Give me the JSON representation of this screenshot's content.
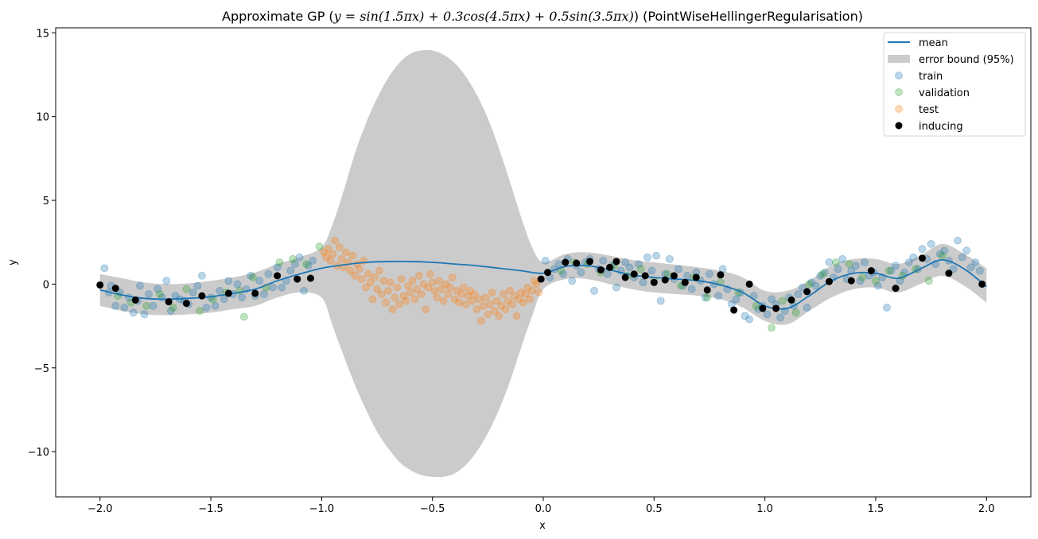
{
  "chart_data": {
    "type": "scatter",
    "title": "Approximate GP ($y=\\sin(1.5\\pi x)+0.3\\cos(4.5\\pi x)+0.5\\sin(3.5\\pi x)$) (PointWiseHellingerRegularisation)",
    "title_parts": {
      "prefix": "Approximate GP (",
      "formula": "y = sin(1.5πx) + 0.3cos(4.5πx) + 0.5sin(3.5πx)",
      "suffix": ") (PointWiseHellingerRegularisation)"
    },
    "xlabel": "x",
    "ylabel": "y",
    "xlim": [
      -2.2,
      2.2
    ],
    "ylim": [
      -12.7,
      15.3
    ],
    "xticks": [
      -2.0,
      -1.5,
      -1.0,
      -0.5,
      0.0,
      0.5,
      1.0,
      1.5,
      2.0
    ],
    "xtick_labels": [
      "−2.0",
      "−1.5",
      "−1.0",
      "−0.5",
      "0.0",
      "0.5",
      "1.0",
      "1.5",
      "2.0"
    ],
    "yticks": [
      -10,
      -5,
      0,
      5,
      10,
      15
    ],
    "ytick_labels": [
      "−10",
      "−5",
      "0",
      "5",
      "10",
      "15"
    ],
    "grid": false,
    "legend_position": "top-right",
    "legend": [
      "mean",
      "error bound (95%)",
      "train",
      "validation",
      "test",
      "inducing"
    ],
    "colors": {
      "mean": "#1f77b4",
      "error_bound": "#cbcbcb",
      "train": "#1f77b4",
      "validation": "#2ca02c",
      "test": "#ff7f0e",
      "inducing": "#000000"
    },
    "series": [
      {
        "name": "mean",
        "kind": "line",
        "x": [
          -2.0,
          -1.9,
          -1.8,
          -1.7,
          -1.6,
          -1.5,
          -1.4,
          -1.3,
          -1.2,
          -1.1,
          -1.0,
          -0.9,
          -0.8,
          -0.7,
          -0.6,
          -0.5,
          -0.4,
          -0.3,
          -0.2,
          -0.1,
          0.0,
          0.1,
          0.2,
          0.3,
          0.4,
          0.5,
          0.6,
          0.7,
          0.8,
          0.9,
          1.0,
          1.1,
          1.2,
          1.3,
          1.4,
          1.5,
          1.6,
          1.7,
          1.8,
          1.9,
          2.0
        ],
        "y": [
          -0.35,
          -0.65,
          -0.85,
          -0.9,
          -0.85,
          -0.75,
          -0.55,
          -0.3,
          0.2,
          0.6,
          0.95,
          1.15,
          1.3,
          1.35,
          1.35,
          1.3,
          1.2,
          1.1,
          0.95,
          0.8,
          0.65,
          1.05,
          1.1,
          0.85,
          0.55,
          0.4,
          0.3,
          0.2,
          -0.05,
          -0.5,
          -1.3,
          -1.45,
          -0.7,
          0.2,
          0.65,
          0.65,
          0.35,
          0.9,
          1.45,
          0.9,
          -0.15
        ]
      },
      {
        "name": "error bound (95%)",
        "kind": "band",
        "x": [
          -2.0,
          -1.9,
          -1.8,
          -1.7,
          -1.6,
          -1.5,
          -1.4,
          -1.3,
          -1.2,
          -1.1,
          -1.0,
          -0.95,
          -0.9,
          -0.85,
          -0.8,
          -0.75,
          -0.7,
          -0.65,
          -0.6,
          -0.55,
          -0.5,
          -0.45,
          -0.4,
          -0.35,
          -0.3,
          -0.25,
          -0.2,
          -0.15,
          -0.1,
          -0.05,
          0.0,
          0.1,
          0.2,
          0.3,
          0.4,
          0.5,
          0.6,
          0.7,
          0.8,
          0.9,
          1.0,
          1.1,
          1.2,
          1.3,
          1.4,
          1.5,
          1.6,
          1.7,
          1.8,
          1.9,
          2.0
        ],
        "upper": [
          0.6,
          0.35,
          0.1,
          0.0,
          0.05,
          0.2,
          0.4,
          0.7,
          1.2,
          1.6,
          2.2,
          3.6,
          5.6,
          7.8,
          9.6,
          11.1,
          12.3,
          13.2,
          13.75,
          13.95,
          13.95,
          13.7,
          13.2,
          12.4,
          11.3,
          9.9,
          8.1,
          6.1,
          4.0,
          2.2,
          1.3,
          1.8,
          1.9,
          1.7,
          1.45,
          1.3,
          1.15,
          1.0,
          0.8,
          0.4,
          -0.4,
          -0.4,
          0.2,
          1.1,
          1.5,
          1.5,
          1.2,
          1.7,
          2.4,
          1.8,
          0.95
        ],
        "lower": [
          -1.3,
          -1.6,
          -1.8,
          -1.85,
          -1.8,
          -1.7,
          -1.5,
          -1.3,
          -0.8,
          -0.5,
          -0.8,
          -2.5,
          -4.3,
          -6.0,
          -7.5,
          -8.8,
          -9.8,
          -10.6,
          -11.1,
          -11.4,
          -11.5,
          -11.5,
          -11.3,
          -10.8,
          -10.0,
          -8.9,
          -7.5,
          -5.8,
          -3.8,
          -1.9,
          -0.3,
          0.3,
          0.3,
          0.0,
          -0.3,
          -0.5,
          -0.6,
          -0.7,
          -0.9,
          -1.4,
          -2.2,
          -2.4,
          -1.6,
          -0.8,
          -0.3,
          -0.2,
          -0.5,
          0.0,
          0.5,
          -0.1,
          -1.1
        ]
      },
      {
        "name": "train",
        "kind": "scatter",
        "x": [
          -1.98,
          -1.96,
          -1.95,
          -1.93,
          -1.91,
          -1.89,
          -1.87,
          -1.85,
          -1.83,
          -1.82,
          -1.8,
          -1.78,
          -1.76,
          -1.74,
          -1.72,
          -1.7,
          -1.68,
          -1.66,
          -1.64,
          -1.62,
          -1.6,
          -1.58,
          -1.56,
          -1.54,
          -1.52,
          -1.5,
          -1.48,
          -1.46,
          -1.44,
          -1.42,
          -1.4,
          -1.38,
          -1.36,
          -1.34,
          -1.32,
          -1.3,
          -1.28,
          -1.26,
          -1.24,
          -1.22,
          -1.2,
          -1.18,
          -1.16,
          -1.14,
          -1.12,
          -1.1,
          -1.08,
          -1.06,
          -1.04,
          0.01,
          0.03,
          0.05,
          0.07,
          0.09,
          0.11,
          0.13,
          0.15,
          0.17,
          0.19,
          0.21,
          0.23,
          0.25,
          0.27,
          0.29,
          0.31,
          0.33,
          0.35,
          0.37,
          0.39,
          0.41,
          0.43,
          0.45,
          0.47,
          0.49,
          0.51,
          0.53,
          0.55,
          0.57,
          0.59,
          0.61,
          0.63,
          0.65,
          0.67,
          0.69,
          0.71,
          0.73,
          0.75,
          0.77,
          0.79,
          0.81,
          0.83,
          0.85,
          0.87,
          0.89,
          0.91,
          0.93,
          0.95,
          0.97,
          0.99,
          1.01,
          1.03,
          1.05,
          1.07,
          1.09,
          1.11,
          1.13,
          1.15,
          1.17,
          1.19,
          1.21,
          1.23,
          1.25,
          1.27,
          1.29,
          1.31,
          1.33,
          1.35,
          1.37,
          1.39,
          1.41,
          1.43,
          1.45,
          1.47,
          1.49,
          1.51,
          1.53,
          1.55,
          1.57,
          1.59,
          1.61,
          1.63,
          1.65,
          1.67,
          1.69,
          1.71,
          1.73,
          1.75,
          1.77,
          1.79,
          1.81,
          1.83,
          1.85,
          1.87,
          1.89,
          1.91,
          1.93,
          1.95,
          1.97
        ],
        "y": [
          0.95,
          -0.5,
          -0.1,
          -1.3,
          -0.5,
          -1.4,
          -0.8,
          -1.7,
          -1.0,
          -0.1,
          -1.8,
          -0.6,
          -1.3,
          -0.3,
          -0.8,
          0.2,
          -1.6,
          -0.7,
          -0.9,
          -1.0,
          -1.2,
          -0.5,
          -0.1,
          0.5,
          -1.4,
          -0.8,
          -1.3,
          -0.4,
          -0.9,
          0.2,
          -0.6,
          0.0,
          -0.8,
          -0.3,
          0.5,
          -0.7,
          0.2,
          -0.6,
          0.6,
          -0.2,
          1.0,
          -0.2,
          0.2,
          0.8,
          1.2,
          1.6,
          -0.4,
          1.1,
          1.4,
          1.4,
          0.4,
          0.9,
          1.2,
          0.6,
          1.5,
          0.2,
          1.1,
          0.7,
          1.3,
          1.5,
          -0.4,
          0.9,
          1.4,
          0.6,
          1.1,
          -0.2,
          0.8,
          1.3,
          1.0,
          0.4,
          1.2,
          0.1,
          1.6,
          0.8,
          1.7,
          -1.0,
          0.6,
          1.5,
          0.3,
          0.9,
          -0.1,
          0.5,
          -0.3,
          0.7,
          0.2,
          -0.8,
          0.6,
          0.0,
          -0.7,
          0.9,
          -0.3,
          -1.2,
          -0.9,
          -0.5,
          -1.9,
          -2.1,
          -0.7,
          -1.5,
          -1.3,
          -1.8,
          -0.9,
          -1.2,
          -2.0,
          -1.6,
          -0.8,
          -1.3,
          -0.6,
          -0.2,
          -1.4,
          0.1,
          -0.1,
          0.5,
          0.7,
          1.3,
          0.4,
          0.9,
          1.5,
          0.3,
          0.8,
          1.1,
          0.2,
          1.3,
          0.5,
          0.7,
          -0.1,
          0.4,
          -1.4,
          0.8,
          1.1,
          0.2,
          0.7,
          1.3,
          1.6,
          0.9,
          2.1,
          1.5,
          2.4,
          1.2,
          1.8,
          2.0,
          1.4,
          0.9,
          2.6,
          1.6,
          2.0,
          1.0,
          1.3,
          0.8
        ]
      },
      {
        "name": "validation",
        "kind": "scatter",
        "x": [
          -1.92,
          -1.86,
          -1.79,
          -1.73,
          -1.67,
          -1.61,
          -1.55,
          -1.49,
          -1.43,
          -1.37,
          -1.35,
          -1.31,
          -1.25,
          -1.19,
          -1.13,
          -1.07,
          -1.01,
          0.08,
          0.14,
          0.2,
          0.26,
          0.32,
          0.38,
          0.44,
          0.5,
          0.56,
          0.62,
          0.68,
          0.74,
          0.8,
          0.88,
          0.96,
          1.03,
          1.08,
          1.14,
          1.2,
          1.26,
          1.32,
          1.38,
          1.44,
          1.5,
          1.56,
          1.62,
          1.68,
          1.74,
          1.8
        ],
        "y": [
          -0.7,
          -1.1,
          -1.3,
          -0.6,
          -1.4,
          -0.3,
          -1.6,
          -0.9,
          -0.5,
          -0.4,
          -1.95,
          0.4,
          -0.2,
          1.3,
          1.5,
          1.2,
          2.25,
          0.8,
          1.3,
          1.2,
          0.7,
          1.1,
          0.5,
          0.9,
          0.2,
          0.6,
          -0.1,
          0.4,
          -0.8,
          0.1,
          -0.5,
          -1.3,
          -2.6,
          -1.0,
          -1.7,
          0.0,
          0.6,
          1.3,
          1.2,
          0.4,
          0.2,
          0.8,
          0.5,
          0.9,
          0.2,
          1.7
        ]
      },
      {
        "name": "test",
        "kind": "scatter",
        "x": [
          -0.99,
          -0.98,
          -0.97,
          -0.96,
          -0.95,
          -0.94,
          -0.93,
          -0.92,
          -0.91,
          -0.9,
          -0.89,
          -0.88,
          -0.87,
          -0.86,
          -0.85,
          -0.84,
          -0.83,
          -0.82,
          -0.81,
          -0.8,
          -0.79,
          -0.78,
          -0.77,
          -0.76,
          -0.75,
          -0.74,
          -0.73,
          -0.72,
          -0.71,
          -0.7,
          -0.69,
          -0.68,
          -0.67,
          -0.66,
          -0.65,
          -0.64,
          -0.63,
          -0.62,
          -0.61,
          -0.6,
          -0.59,
          -0.58,
          -0.57,
          -0.56,
          -0.55,
          -0.54,
          -0.53,
          -0.52,
          -0.51,
          -0.5,
          -0.49,
          -0.48,
          -0.47,
          -0.46,
          -0.45,
          -0.44,
          -0.43,
          -0.42,
          -0.41,
          -0.4,
          -0.39,
          -0.38,
          -0.37,
          -0.36,
          -0.35,
          -0.34,
          -0.33,
          -0.32,
          -0.31,
          -0.3,
          -0.29,
          -0.28,
          -0.27,
          -0.26,
          -0.25,
          -0.24,
          -0.23,
          -0.22,
          -0.21,
          -0.2,
          -0.19,
          -0.18,
          -0.17,
          -0.16,
          -0.15,
          -0.14,
          -0.13,
          -0.12,
          -0.11,
          -0.1,
          -0.09,
          -0.08,
          -0.07,
          -0.06,
          -0.05,
          -0.04,
          -0.03,
          -0.02
        ],
        "y": [
          1.9,
          1.6,
          2.1,
          1.4,
          1.8,
          2.6,
          1.1,
          2.2,
          1.5,
          1.0,
          1.9,
          1.3,
          0.8,
          1.7,
          0.5,
          1.2,
          0.9,
          0.3,
          1.4,
          -0.2,
          0.6,
          0.1,
          -0.9,
          0.4,
          -0.3,
          0.8,
          -0.6,
          0.2,
          -1.1,
          -0.4,
          0.1,
          -1.5,
          -0.8,
          -0.2,
          -1.2,
          0.3,
          -0.7,
          -1.0,
          -0.1,
          -0.5,
          0.2,
          -0.9,
          -0.3,
          0.5,
          -0.6,
          0.0,
          -1.5,
          -0.2,
          0.6,
          0.1,
          -0.4,
          -0.8,
          0.2,
          -0.3,
          -1.0,
          0.0,
          -0.6,
          -0.2,
          0.4,
          -0.9,
          -0.4,
          -1.1,
          -0.6,
          -0.2,
          -1.2,
          -0.7,
          -0.4,
          -1.0,
          -0.6,
          -1.5,
          -0.9,
          -2.2,
          -1.3,
          -0.8,
          -1.8,
          -1.2,
          -0.5,
          -1.6,
          -1.0,
          -1.9,
          -1.3,
          -0.6,
          -1.5,
          -1.0,
          -0.4,
          -1.2,
          -0.7,
          -1.9,
          -0.9,
          -0.5,
          -1.1,
          -0.6,
          -0.2,
          -0.9,
          -0.4,
          0.2,
          0.0,
          -0.5
        ]
      },
      {
        "name": "inducing",
        "kind": "scatter",
        "x": [
          -2.0,
          -1.93,
          -1.84,
          -1.69,
          -1.61,
          -1.54,
          -1.42,
          -1.3,
          -1.2,
          -1.11,
          -1.05,
          -0.01,
          0.02,
          0.1,
          0.15,
          0.21,
          0.26,
          0.3,
          0.33,
          0.37,
          0.41,
          0.46,
          0.5,
          0.55,
          0.59,
          0.64,
          0.69,
          0.74,
          0.8,
          0.86,
          0.93,
          0.99,
          1.05,
          1.12,
          1.19,
          1.29,
          1.39,
          1.48,
          1.59,
          1.71,
          1.83,
          1.98
        ],
        "y": [
          -0.05,
          -0.25,
          -0.95,
          -1.05,
          -1.15,
          -0.7,
          -0.55,
          -0.55,
          0.5,
          0.3,
          0.35,
          0.3,
          0.7,
          1.3,
          1.25,
          1.35,
          0.85,
          1.0,
          1.35,
          0.4,
          0.6,
          0.5,
          0.1,
          0.25,
          0.5,
          0.1,
          0.4,
          -0.35,
          0.55,
          -1.55,
          0.0,
          -1.45,
          -1.45,
          -0.95,
          -0.45,
          0.15,
          0.2,
          0.8,
          -0.25,
          1.55,
          0.65,
          0.0
        ]
      }
    ]
  }
}
